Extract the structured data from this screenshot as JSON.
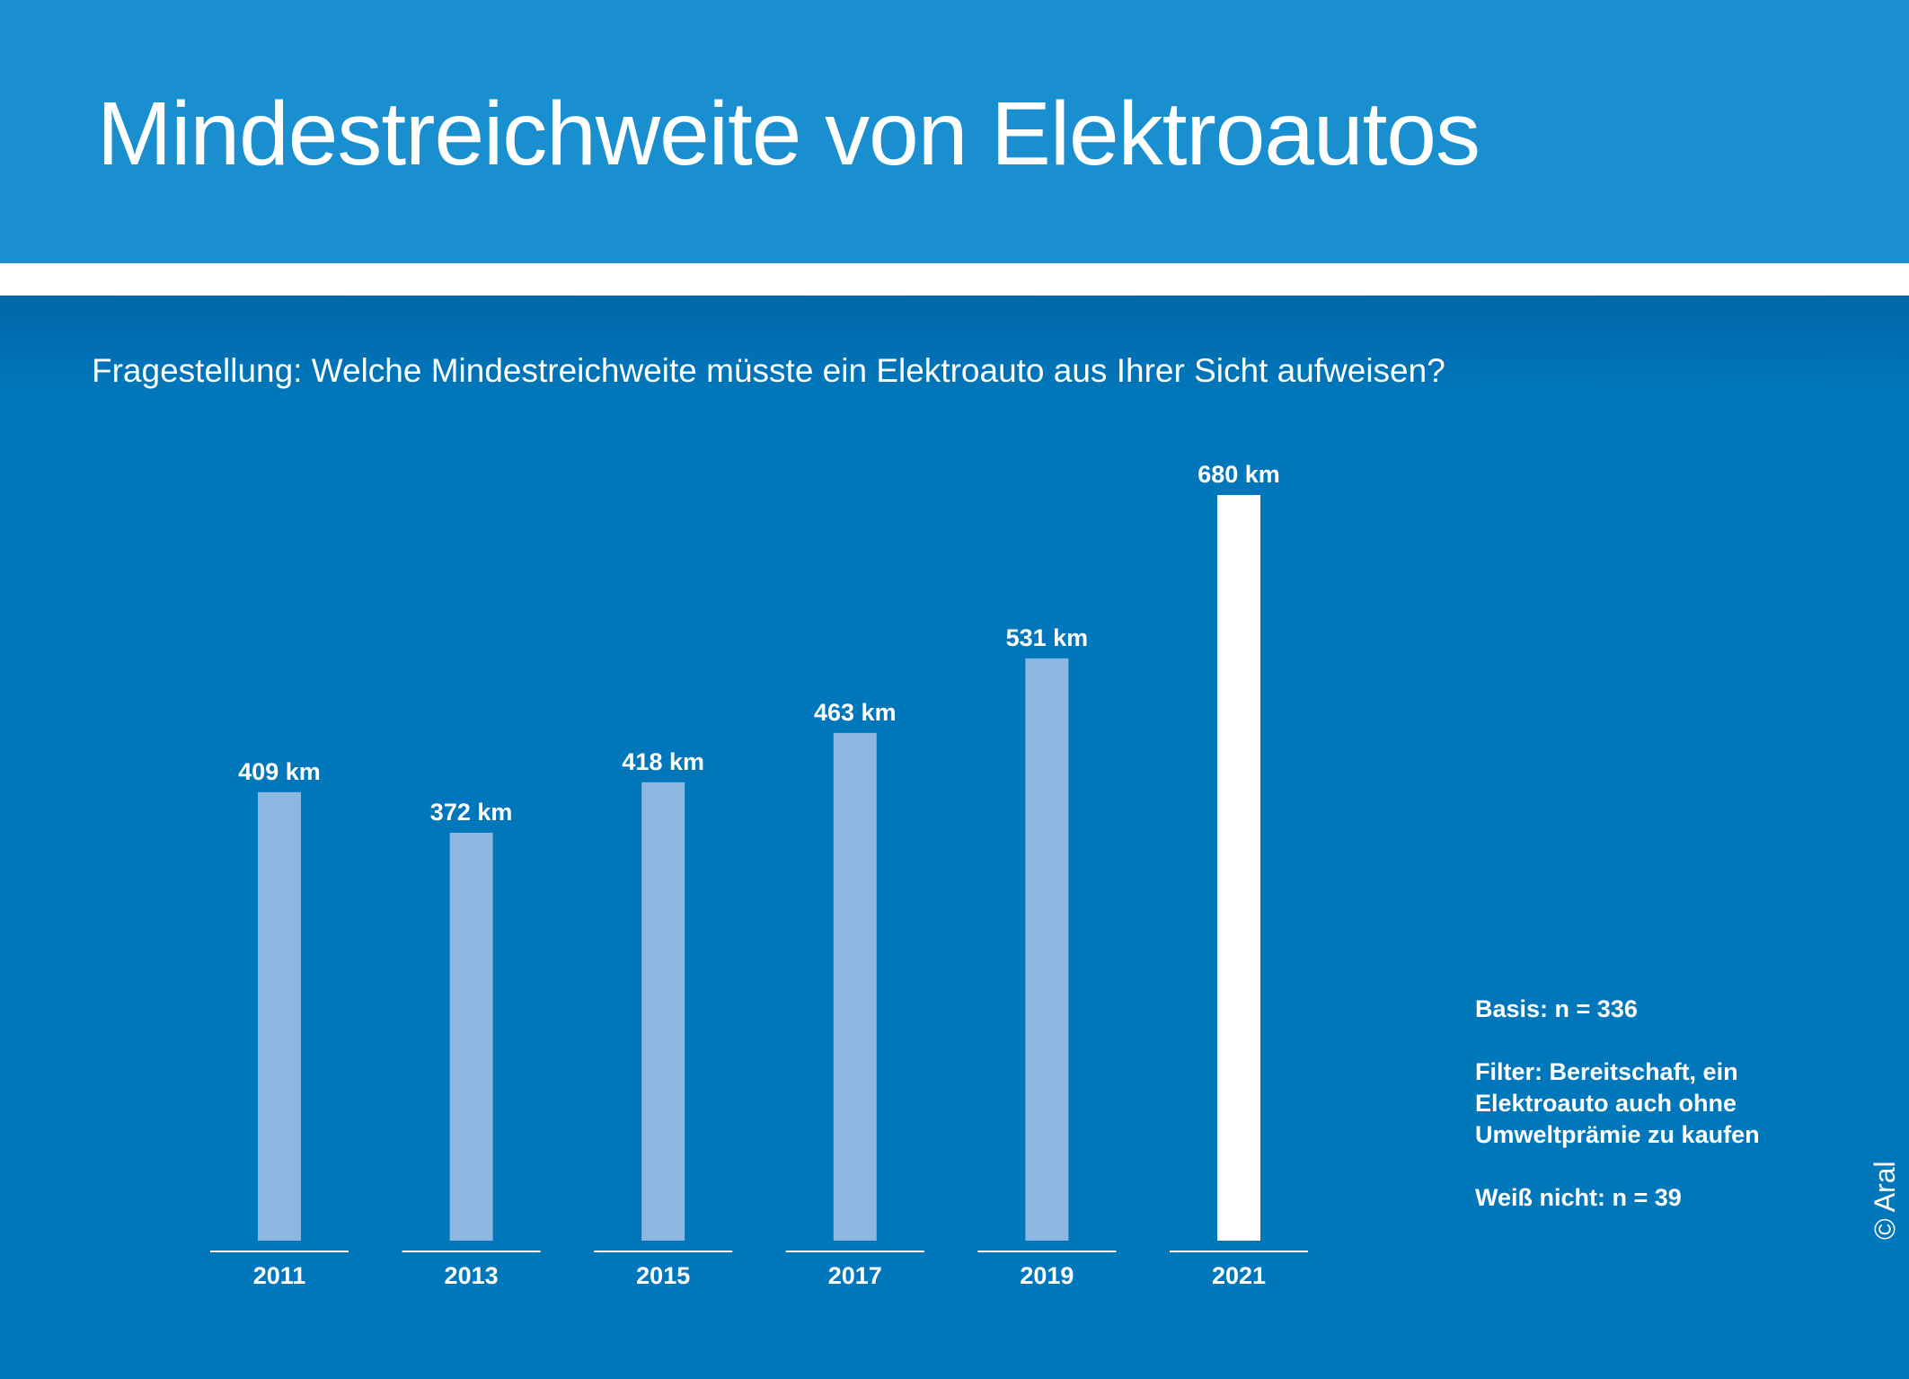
{
  "header": {
    "title": "Mindestreichweite von Elektroautos"
  },
  "subtitle": "Fragestellung: Welche Mindestreichweite müsste ein Elektroauto aus Ihrer Sicht aufweisen?",
  "notes": {
    "basis": "Basis: n = 336",
    "filter": "Filter: Bereitschaft, ein Elektroauto auch ohne Umweltprämie zu kaufen",
    "unknown": "Weiß nicht: n = 39"
  },
  "copyright": "© Aral",
  "colors": {
    "background": "#0077BB",
    "header": "#1A8FCF",
    "bar": "#8DB6E1",
    "highlight_bar": "#FFFFFF",
    "text": "#FFFFFF"
  },
  "chart_data": {
    "type": "bar",
    "categories": [
      "2011",
      "2013",
      "2015",
      "2017",
      "2019",
      "2021"
    ],
    "values": [
      409,
      372,
      418,
      463,
      531,
      680
    ],
    "value_labels": [
      "409 km",
      "372 km",
      "418 km",
      "463 km",
      "531 km",
      "680 km"
    ],
    "unit": "km",
    "highlight_index": 5,
    "ylim": [
      0,
      680
    ],
    "grid": false,
    "legend": "none"
  }
}
